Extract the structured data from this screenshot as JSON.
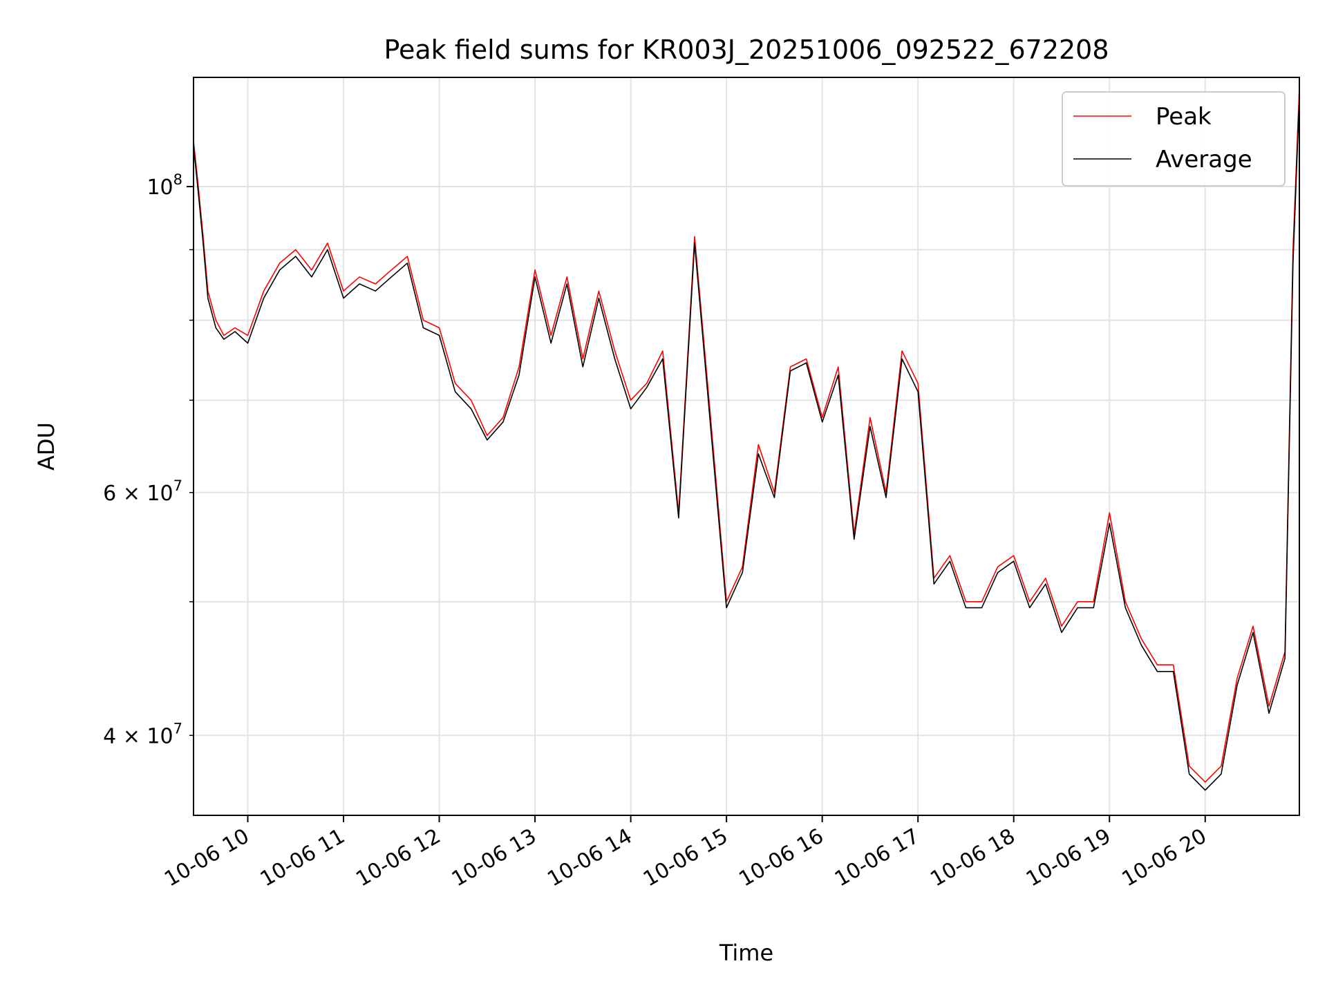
{
  "chart_data": {
    "type": "line",
    "title": "Peak field sums for KR003J_20251006_092522_672208",
    "xlabel": "Time",
    "ylabel": "ADU",
    "yscale": "log",
    "grid": true,
    "legend_position": "top-right",
    "xlim": [
      "2025-10-06 09:26",
      "2025-10-06 20:59"
    ],
    "ylim": [
      35000000,
      120000000
    ],
    "x_tick_labels": [
      "10-06 10",
      "10-06 11",
      "10-06 12",
      "10-06 13",
      "10-06 14",
      "10-06 15",
      "10-06 16",
      "10-06 17",
      "10-06 18",
      "10-06 19",
      "10-06 20"
    ],
    "y_major_ticks": [
      {
        "value": 100000000,
        "label": "10",
        "exp": "8"
      }
    ],
    "y_minor_ticks": [
      {
        "value": 60000000,
        "label": "6 × 10",
        "exp": "7"
      },
      {
        "value": 40000000,
        "label": "4 × 10",
        "exp": "7"
      }
    ],
    "y_minor_grid": [
      40000000,
      50000000,
      60000000,
      70000000,
      80000000,
      90000000
    ],
    "series": [
      {
        "name": "Peak",
        "color": "#ff0000",
        "x": [
          "2025-10-06 09:26",
          "2025-10-06 09:29",
          "2025-10-06 09:32",
          "2025-10-06 09:35",
          "2025-10-06 09:40",
          "2025-10-06 09:45",
          "2025-10-06 09:52",
          "2025-10-06 10:00",
          "2025-10-06 10:10",
          "2025-10-06 10:20",
          "2025-10-06 10:30",
          "2025-10-06 10:40",
          "2025-10-06 10:50",
          "2025-10-06 11:00",
          "2025-10-06 11:10",
          "2025-10-06 11:20",
          "2025-10-06 11:30",
          "2025-10-06 11:40",
          "2025-10-06 11:50",
          "2025-10-06 12:00",
          "2025-10-06 12:10",
          "2025-10-06 12:20",
          "2025-10-06 12:30",
          "2025-10-06 12:40",
          "2025-10-06 12:50",
          "2025-10-06 13:00",
          "2025-10-06 13:10",
          "2025-10-06 13:20",
          "2025-10-06 13:30",
          "2025-10-06 13:40",
          "2025-10-06 13:50",
          "2025-10-06 14:00",
          "2025-10-06 14:10",
          "2025-10-06 14:20",
          "2025-10-06 14:30",
          "2025-10-06 14:40",
          "2025-10-06 14:50",
          "2025-10-06 15:00",
          "2025-10-06 15:10",
          "2025-10-06 15:20",
          "2025-10-06 15:30",
          "2025-10-06 15:40",
          "2025-10-06 15:50",
          "2025-10-06 16:00",
          "2025-10-06 16:10",
          "2025-10-06 16:20",
          "2025-10-06 16:30",
          "2025-10-06 16:40",
          "2025-10-06 16:50",
          "2025-10-06 17:00",
          "2025-10-06 17:10",
          "2025-10-06 17:20",
          "2025-10-06 17:30",
          "2025-10-06 17:40",
          "2025-10-06 17:50",
          "2025-10-06 18:00",
          "2025-10-06 18:10",
          "2025-10-06 18:20",
          "2025-10-06 18:30",
          "2025-10-06 18:40",
          "2025-10-06 18:50",
          "2025-10-06 19:00",
          "2025-10-06 19:10",
          "2025-10-06 19:20",
          "2025-10-06 19:30",
          "2025-10-06 19:40",
          "2025-10-06 19:50",
          "2025-10-06 20:00",
          "2025-10-06 20:10",
          "2025-10-06 20:20",
          "2025-10-06 20:30",
          "2025-10-06 20:40",
          "2025-10-06 20:50",
          "2025-10-06 20:55",
          "2025-10-06 20:59"
        ],
        "y": [
          108000000,
          100000000,
          92000000,
          84000000,
          80000000,
          78000000,
          79000000,
          78000000,
          84000000,
          88000000,
          90000000,
          87000000,
          91000000,
          84000000,
          86000000,
          85000000,
          87000000,
          89000000,
          80000000,
          79000000,
          72000000,
          70000000,
          66000000,
          68000000,
          74000000,
          87000000,
          78000000,
          86000000,
          75000000,
          84000000,
          76000000,
          70000000,
          72000000,
          76000000,
          58000000,
          92000000,
          68000000,
          50000000,
          53000000,
          65000000,
          60000000,
          74000000,
          75000000,
          68000000,
          74000000,
          56000000,
          68000000,
          60000000,
          76000000,
          72000000,
          52000000,
          54000000,
          50000000,
          50000000,
          53000000,
          54000000,
          50000000,
          52000000,
          48000000,
          50000000,
          50000000,
          58000000,
          50000000,
          47000000,
          45000000,
          45000000,
          38000000,
          37000000,
          38000000,
          44000000,
          48000000,
          42000000,
          46000000,
          90000000,
          118000000
        ]
      },
      {
        "name": "Average",
        "color": "#000000",
        "x": [
          "2025-10-06 09:26",
          "2025-10-06 09:29",
          "2025-10-06 09:32",
          "2025-10-06 09:35",
          "2025-10-06 09:40",
          "2025-10-06 09:45",
          "2025-10-06 09:52",
          "2025-10-06 10:00",
          "2025-10-06 10:10",
          "2025-10-06 10:20",
          "2025-10-06 10:30",
          "2025-10-06 10:40",
          "2025-10-06 10:50",
          "2025-10-06 11:00",
          "2025-10-06 11:10",
          "2025-10-06 11:20",
          "2025-10-06 11:30",
          "2025-10-06 11:40",
          "2025-10-06 11:50",
          "2025-10-06 12:00",
          "2025-10-06 12:10",
          "2025-10-06 12:20",
          "2025-10-06 12:30",
          "2025-10-06 12:40",
          "2025-10-06 12:50",
          "2025-10-06 13:00",
          "2025-10-06 13:10",
          "2025-10-06 13:20",
          "2025-10-06 13:30",
          "2025-10-06 13:40",
          "2025-10-06 13:50",
          "2025-10-06 14:00",
          "2025-10-06 14:10",
          "2025-10-06 14:20",
          "2025-10-06 14:30",
          "2025-10-06 14:40",
          "2025-10-06 14:50",
          "2025-10-06 15:00",
          "2025-10-06 15:10",
          "2025-10-06 15:20",
          "2025-10-06 15:30",
          "2025-10-06 15:40",
          "2025-10-06 15:50",
          "2025-10-06 16:00",
          "2025-10-06 16:10",
          "2025-10-06 16:20",
          "2025-10-06 16:30",
          "2025-10-06 16:40",
          "2025-10-06 16:50",
          "2025-10-06 17:00",
          "2025-10-06 17:10",
          "2025-10-06 17:20",
          "2025-10-06 17:30",
          "2025-10-06 17:40",
          "2025-10-06 17:50",
          "2025-10-06 18:00",
          "2025-10-06 18:10",
          "2025-10-06 18:20",
          "2025-10-06 18:30",
          "2025-10-06 18:40",
          "2025-10-06 18:50",
          "2025-10-06 19:00",
          "2025-10-06 19:10",
          "2025-10-06 19:20",
          "2025-10-06 19:30",
          "2025-10-06 19:40",
          "2025-10-06 19:50",
          "2025-10-06 20:00",
          "2025-10-06 20:10",
          "2025-10-06 20:20",
          "2025-10-06 20:30",
          "2025-10-06 20:40",
          "2025-10-06 20:50",
          "2025-10-06 20:55",
          "2025-10-06 20:59"
        ],
        "y": [
          107000000,
          99000000,
          91000000,
          83000000,
          79000000,
          77500000,
          78500000,
          77000000,
          83000000,
          87000000,
          89000000,
          86000000,
          90000000,
          83000000,
          85000000,
          84000000,
          86000000,
          88000000,
          79000000,
          78000000,
          71000000,
          69000000,
          65500000,
          67500000,
          73000000,
          86000000,
          77000000,
          85000000,
          74000000,
          83000000,
          75000000,
          69000000,
          71500000,
          75000000,
          57500000,
          91000000,
          67000000,
          49500000,
          52500000,
          64000000,
          59500000,
          73500000,
          74500000,
          67500000,
          73000000,
          55500000,
          67000000,
          59500000,
          75000000,
          71000000,
          51500000,
          53500000,
          49500000,
          49500000,
          52500000,
          53500000,
          49500000,
          51500000,
          47500000,
          49500000,
          49500000,
          57000000,
          49500000,
          46500000,
          44500000,
          44500000,
          37500000,
          36500000,
          37500000,
          43500000,
          47500000,
          41500000,
          45500000,
          88000000,
          116000000
        ]
      }
    ]
  }
}
